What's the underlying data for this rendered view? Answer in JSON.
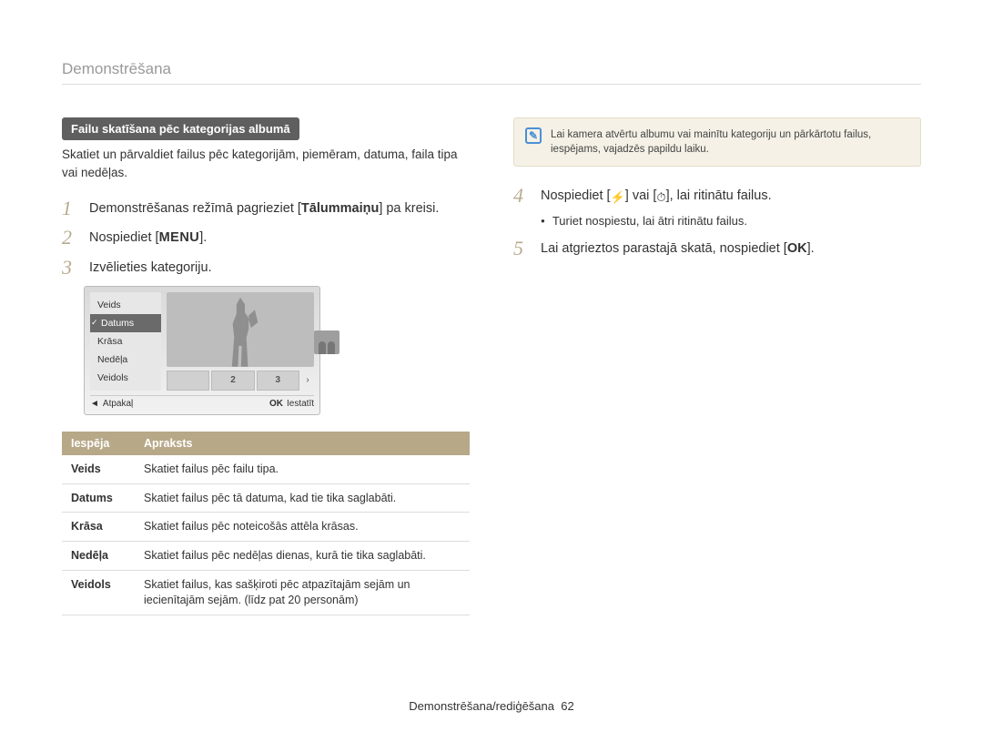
{
  "page": {
    "section_title": "Demonstrēšana",
    "footer_text": "Demonstrēšana/rediģēšana",
    "footer_page": "62"
  },
  "left": {
    "pill": "Failu skatīšana pēc kategorijas albumā",
    "intro": "Skatiet un pārvaldiet failus pēc kategorijām, piemēram, datuma, faila tipa vai nedēļas.",
    "step1_a": "Demonstrēšanas režīmā pagrieziet [",
    "step1_bold": "Tālummaiņu",
    "step1_b": "] pa kreisi.",
    "step2_a": "Nospiediet [",
    "step2_menu": "MENU",
    "step2_b": "].",
    "step3": "Izvēlieties kategoriju."
  },
  "lcd": {
    "menu": [
      "Veids",
      "Datums",
      "Krāsa",
      "Nedēļa",
      "Veidols"
    ],
    "selected_index": 1,
    "thumbs": [
      "2",
      "3"
    ],
    "back_label": "Atpakaļ",
    "set_label": "Iestatīt",
    "ok": "OK"
  },
  "table": {
    "headers": [
      "Iespēja",
      "Apraksts"
    ],
    "rows": [
      [
        "Veids",
        "Skatiet failus pēc failu tipa."
      ],
      [
        "Datums",
        "Skatiet failus pēc tā datuma, kad tie tika saglabāti."
      ],
      [
        "Krāsa",
        "Skatiet failus pēc noteicošās attēla krāsas."
      ],
      [
        "Nedēļa",
        "Skatiet failus pēc nedēļas dienas, kurā tie tika saglabāti."
      ],
      [
        "Veidols",
        "Skatiet failus, kas sašķiroti pēc atpazītajām sejām un iecienītajām sejām. (līdz pat 20 personām)"
      ]
    ]
  },
  "right": {
    "note": "Lai kamera atvērtu albumu vai mainītu kategoriju un pārkārtotu failus, iespējams, vajadzēs papildu laiku.",
    "step4_a": "Nospiediet [",
    "step4_mid": "] vai [",
    "step4_b": "], lai ritinātu failus.",
    "step4_sub": "Turiet nospiestu, lai ātri ritinātu failus.",
    "step5_a": "Lai atgrieztos parastajā skatā, nospiediet [",
    "step5_ok": "OK",
    "step5_b": "]."
  }
}
